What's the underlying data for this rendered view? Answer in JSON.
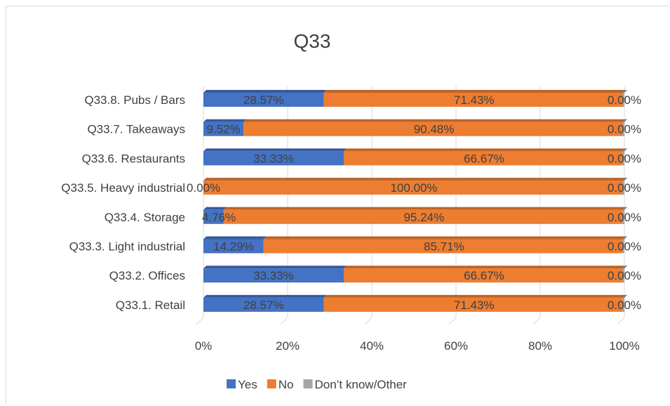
{
  "chart_data": {
    "type": "bar",
    "orientation": "horizontal",
    "stacked": "percent",
    "title": "Q33",
    "categories": [
      "Q33.8. Pubs / Bars",
      "Q33.7. Takeaways",
      "Q33.6. Restaurants",
      "Q33.5. Heavy industrial",
      "Q33.4. Storage",
      "Q33.3. Light industrial",
      "Q33.2. Offices",
      "Q33.1. Retail"
    ],
    "series": [
      {
        "name": "Yes",
        "color": "#4472c4",
        "values": [
          28.57,
          9.52,
          33.33,
          0.0,
          4.76,
          14.29,
          33.33,
          28.57
        ],
        "labels": [
          "28.57%",
          "9.52%",
          "33.33%",
          "0.00%",
          "4.76%",
          "14.29%",
          "33.33%",
          "28.57%"
        ]
      },
      {
        "name": "No",
        "color": "#ed7d31",
        "values": [
          71.43,
          90.48,
          66.67,
          100.0,
          95.24,
          85.71,
          66.67,
          71.43
        ],
        "labels": [
          "71.43%",
          "90.48%",
          "66.67%",
          "100.00%",
          "95.24%",
          "85.71%",
          "66.67%",
          "71.43%"
        ]
      },
      {
        "name": "Don’t know/Other",
        "color": "#a5a5a5",
        "values": [
          0,
          0,
          0,
          0,
          0,
          0,
          0,
          0
        ],
        "labels": [
          "0.00%",
          "0.00%",
          "0.00%",
          "0.00%",
          "0.00%",
          "0.00%",
          "0.00%",
          "0.00%"
        ]
      }
    ],
    "x_ticks": [
      "0%",
      "20%",
      "40%",
      "60%",
      "80%",
      "100%"
    ],
    "xlim": [
      0,
      100
    ],
    "grid": true,
    "legend_position": "bottom"
  }
}
